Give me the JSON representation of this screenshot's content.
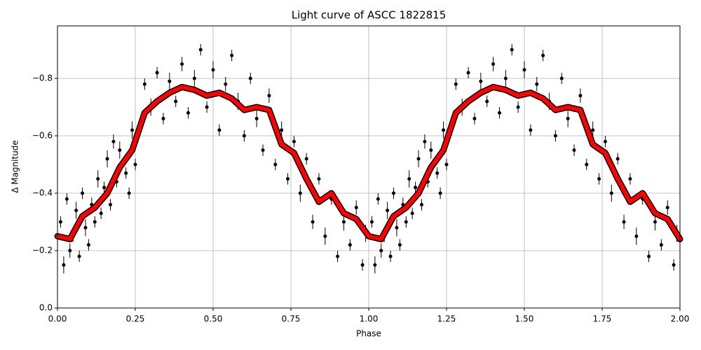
{
  "chart_data": {
    "type": "scatter",
    "title": "Light curve of ASCC 1822815",
    "xlabel": "Phase",
    "ylabel": "Δ Magnitude",
    "xlim": [
      0,
      2
    ],
    "ylim": [
      0,
      -0.983
    ],
    "xticks": [
      {
        "value": 0,
        "label": "0.00"
      },
      {
        "value": 0.25,
        "label": "0.25"
      },
      {
        "value": 0.5,
        "label": "0.50"
      },
      {
        "value": 0.75,
        "label": "0.75"
      },
      {
        "value": 1,
        "label": "1.00"
      },
      {
        "value": 1.25,
        "label": "1.25"
      },
      {
        "value": 1.5,
        "label": "1.50"
      },
      {
        "value": 1.75,
        "label": "1.75"
      },
      {
        "value": 2,
        "label": "2.00"
      }
    ],
    "yticks": [
      {
        "value": 0,
        "label": "0.0"
      },
      {
        "value": -0.2,
        "label": "−0.2"
      },
      {
        "value": -0.4,
        "label": "−0.4"
      },
      {
        "value": -0.6,
        "label": "−0.6"
      },
      {
        "value": -0.8,
        "label": "−0.8"
      }
    ],
    "grid": true,
    "series": [
      {
        "type": "errorbar",
        "color": "#000000",
        "x": [
          0.01,
          0.02,
          0.03,
          0.04,
          0.05,
          0.06,
          0.07,
          0.08,
          0.09,
          0.1,
          0.11,
          0.12,
          0.13,
          0.14,
          0.15,
          0.16,
          0.17,
          0.18,
          0.19,
          0.2,
          0.22,
          0.23,
          0.24,
          0.25,
          0.27,
          0.28,
          0.3,
          0.32,
          0.34,
          0.36,
          0.38,
          0.4,
          0.42,
          0.44,
          0.46,
          0.48,
          0.5,
          0.52,
          0.54,
          0.56,
          0.58,
          0.6,
          0.62,
          0.64,
          0.66,
          0.68,
          0.7,
          0.72,
          0.74,
          0.76,
          0.78,
          0.8,
          0.82,
          0.84,
          0.86,
          0.88,
          0.9,
          0.92,
          0.94,
          0.96,
          0.98,
          0.99,
          1.01,
          1.02,
          1.03,
          1.04,
          1.05,
          1.06,
          1.07,
          1.08,
          1.09,
          1.1,
          1.11,
          1.12,
          1.13,
          1.14,
          1.15,
          1.16,
          1.17,
          1.18,
          1.19,
          1.2,
          1.22,
          1.23,
          1.24,
          1.25,
          1.27,
          1.28,
          1.3,
          1.32,
          1.34,
          1.36,
          1.38,
          1.4,
          1.42,
          1.44,
          1.46,
          1.48,
          1.5,
          1.52,
          1.54,
          1.56,
          1.58,
          1.6,
          1.62,
          1.64,
          1.66,
          1.68,
          1.7,
          1.72,
          1.74,
          1.76,
          1.78,
          1.8,
          1.82,
          1.84,
          1.86,
          1.88,
          1.9,
          1.92,
          1.94,
          1.96,
          1.98,
          1.99
        ],
        "values": [
          -0.3,
          -0.15,
          -0.38,
          -0.2,
          -0.25,
          -0.34,
          -0.18,
          -0.4,
          -0.28,
          -0.22,
          -0.36,
          -0.3,
          -0.45,
          -0.33,
          -0.42,
          -0.52,
          -0.36,
          -0.58,
          -0.44,
          -0.55,
          -0.47,
          -0.4,
          -0.62,
          -0.5,
          -0.65,
          -0.78,
          -0.7,
          -0.82,
          -0.66,
          -0.79,
          -0.72,
          -0.85,
          -0.68,
          -0.8,
          -0.9,
          -0.7,
          -0.83,
          -0.62,
          -0.78,
          -0.88,
          -0.72,
          -0.6,
          -0.8,
          -0.66,
          -0.55,
          -0.74,
          -0.5,
          -0.62,
          -0.45,
          -0.58,
          -0.4,
          -0.52,
          -0.3,
          -0.45,
          -0.25,
          -0.38,
          -0.18,
          -0.3,
          -0.22,
          -0.35,
          -0.15,
          -0.26,
          -0.3,
          -0.15,
          -0.38,
          -0.2,
          -0.25,
          -0.34,
          -0.18,
          -0.4,
          -0.28,
          -0.22,
          -0.36,
          -0.3,
          -0.45,
          -0.33,
          -0.42,
          -0.52,
          -0.36,
          -0.58,
          -0.44,
          -0.55,
          -0.47,
          -0.4,
          -0.62,
          -0.5,
          -0.65,
          -0.78,
          -0.7,
          -0.82,
          -0.66,
          -0.79,
          -0.72,
          -0.85,
          -0.68,
          -0.8,
          -0.9,
          -0.7,
          -0.83,
          -0.62,
          -0.78,
          -0.88,
          -0.72,
          -0.6,
          -0.8,
          -0.66,
          -0.55,
          -0.74,
          -0.5,
          -0.62,
          -0.45,
          -0.58,
          -0.4,
          -0.52,
          -0.3,
          -0.45,
          -0.25,
          -0.38,
          -0.18,
          -0.3,
          -0.22,
          -0.35,
          -0.15,
          -0.26
        ],
        "errors": [
          0.02,
          0.03,
          0.02,
          0.025,
          0.02,
          0.03,
          0.02,
          0.02,
          0.03,
          0.02,
          0.025,
          0.02,
          0.03,
          0.02,
          0.02,
          0.03,
          0.02,
          0.025,
          0.02,
          0.03,
          0.02,
          0.02,
          0.03,
          0.02,
          0.025,
          0.02,
          0.03,
          0.02,
          0.02,
          0.03,
          0.02,
          0.025,
          0.02,
          0.03,
          0.02,
          0.02,
          0.03,
          0.02,
          0.025,
          0.02,
          0.03,
          0.02,
          0.02,
          0.03,
          0.02,
          0.025,
          0.02,
          0.03,
          0.02,
          0.02,
          0.03,
          0.02,
          0.025,
          0.02,
          0.03,
          0.02,
          0.02,
          0.03,
          0.02,
          0.025,
          0.02,
          0.03,
          0.02,
          0.03,
          0.02,
          0.025,
          0.02,
          0.03,
          0.02,
          0.02,
          0.03,
          0.02,
          0.025,
          0.02,
          0.03,
          0.02,
          0.02,
          0.03,
          0.02,
          0.025,
          0.02,
          0.03,
          0.02,
          0.02,
          0.03,
          0.02,
          0.025,
          0.02,
          0.03,
          0.02,
          0.02,
          0.03,
          0.02,
          0.025,
          0.02,
          0.03,
          0.02,
          0.02,
          0.03,
          0.02,
          0.025,
          0.02,
          0.03,
          0.02,
          0.02,
          0.03,
          0.02,
          0.025,
          0.02,
          0.03,
          0.02,
          0.02,
          0.03,
          0.02,
          0.025,
          0.02,
          0.03,
          0.02,
          0.02,
          0.03,
          0.02,
          0.025,
          0.02,
          0.03
        ]
      },
      {
        "type": "line",
        "color": "#ff0000",
        "x": [
          0,
          0.04,
          0.08,
          0.12,
          0.16,
          0.2,
          0.24,
          0.28,
          0.32,
          0.36,
          0.4,
          0.44,
          0.48,
          0.52,
          0.56,
          0.6,
          0.64,
          0.68,
          0.72,
          0.76,
          0.8,
          0.84,
          0.88,
          0.92,
          0.96,
          1,
          1.04,
          1.08,
          1.12,
          1.16,
          1.2,
          1.24,
          1.28,
          1.32,
          1.36,
          1.4,
          1.44,
          1.48,
          1.52,
          1.56,
          1.6,
          1.64,
          1.68,
          1.72,
          1.76,
          1.8,
          1.84,
          1.88,
          1.92,
          1.96,
          2
        ],
        "values": [
          -0.25,
          -0.24,
          -0.32,
          -0.35,
          -0.4,
          -0.49,
          -0.55,
          -0.68,
          -0.72,
          -0.75,
          -0.77,
          -0.76,
          -0.74,
          -0.75,
          -0.73,
          -0.69,
          -0.7,
          -0.69,
          -0.57,
          -0.54,
          -0.45,
          -0.37,
          -0.4,
          -0.33,
          -0.31,
          -0.25,
          -0.24,
          -0.32,
          -0.35,
          -0.4,
          -0.49,
          -0.55,
          -0.68,
          -0.72,
          -0.75,
          -0.77,
          -0.76,
          -0.74,
          -0.75,
          -0.73,
          -0.69,
          -0.7,
          -0.69,
          -0.57,
          -0.54,
          -0.45,
          -0.37,
          -0.4,
          -0.33,
          -0.31,
          -0.24
        ]
      }
    ]
  }
}
